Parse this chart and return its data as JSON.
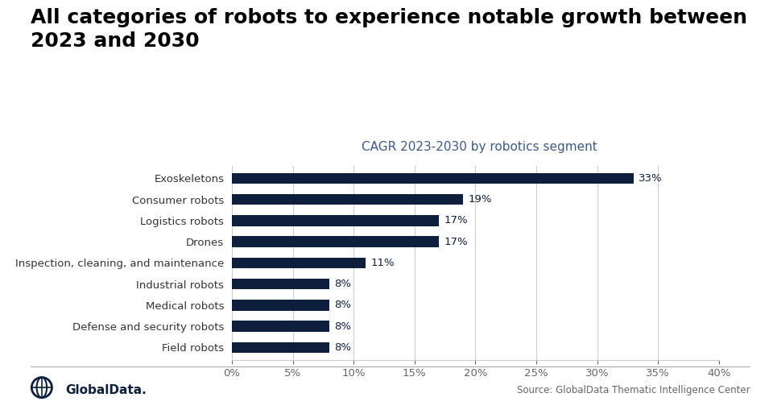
{
  "title": "All categories of robots to experience notable growth between\n2023 and 2030",
  "subtitle": "CAGR 2023-2030 by robotics segment",
  "categories": [
    "Field robots",
    "Defense and security robots",
    "Medical robots",
    "Industrial robots",
    "Inspection, cleaning, and maintenance",
    "Drones",
    "Logistics robots",
    "Consumer robots",
    "Exoskeletons"
  ],
  "values": [
    8,
    8,
    8,
    8,
    11,
    17,
    17,
    19,
    33
  ],
  "bar_color": "#0d1f3c",
  "label_color": "#0d1f3c",
  "title_color": "#000000",
  "subtitle_color": "#3d5a8a",
  "background_color": "#ffffff",
  "xlim": [
    0,
    40
  ],
  "xtick_values": [
    0,
    5,
    10,
    15,
    20,
    25,
    30,
    35,
    40
  ],
  "source_text": "Source: GlobalData Thematic Intelligence Center",
  "bar_height": 0.52,
  "title_fontsize": 18,
  "subtitle_fontsize": 11,
  "tick_fontsize": 9.5,
  "label_fontsize": 9.5,
  "category_fontsize": 9.5
}
